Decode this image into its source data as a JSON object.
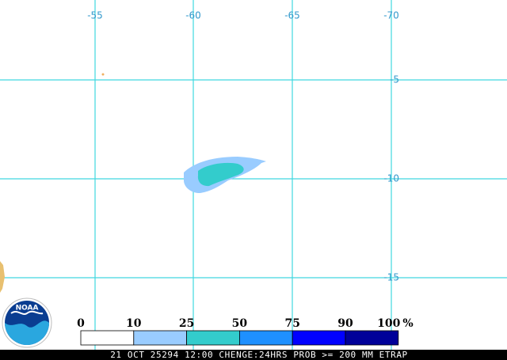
{
  "map": {
    "longitude_labels": [
      "-55",
      "-60",
      "-65",
      "-70"
    ],
    "latitude_labels": [
      "-5",
      "-10",
      "-15"
    ],
    "legend": {
      "labels": [
        0,
        10,
        25,
        50,
        75,
        90,
        100
      ],
      "unit": "%",
      "colors": [
        "#ffffff",
        "#99ccff",
        "#33cccc",
        "#1e90ff",
        "#0000ff",
        "#000099"
      ]
    },
    "logo": "NOAA",
    "footer": "21 OCT 25294 12:00 CHENGE:24HRS PROB >= 200 MM ETRAP"
  }
}
